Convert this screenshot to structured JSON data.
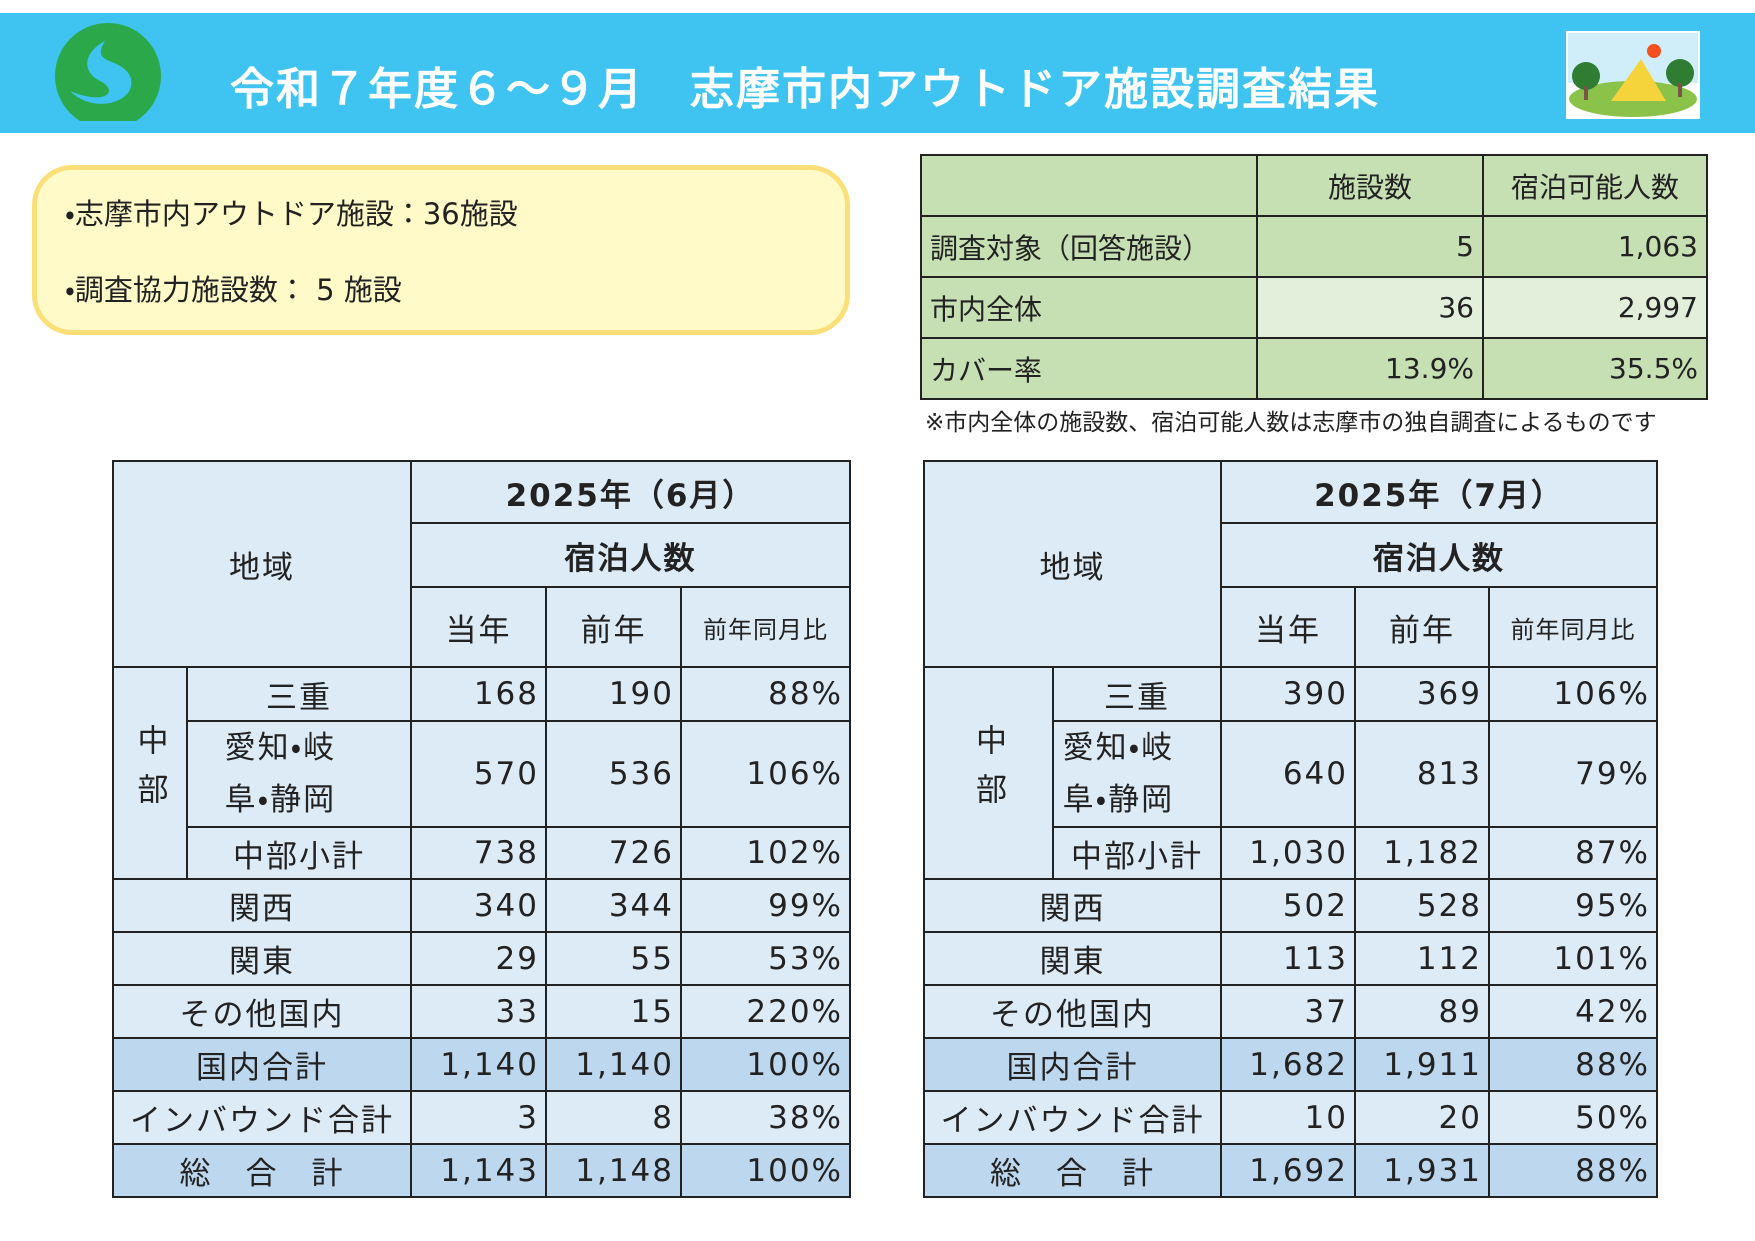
{
  "header": {
    "title": "令和７年度６～９月　志摩市内アウトドア施設調査結果"
  },
  "summary": {
    "items": [
      "・志摩市内アウトドア施設：36施設",
      "・調査協力施設数： 5 施設"
    ]
  },
  "coverage_table": {
    "columns": [
      "施設数",
      "宿泊可能人数"
    ],
    "rows": [
      {
        "label": "調査対象（回答施設）",
        "values": [
          "5",
          "1,063"
        ]
      },
      {
        "label": "市内全体",
        "values": [
          "36",
          "2,997"
        ]
      },
      {
        "label": "カバー率",
        "values": [
          "13.9%",
          "35.5%"
        ]
      }
    ],
    "note": "※市内全体の施設数、宿泊可能人数は志摩市の独自調査によるものです"
  },
  "tables": [
    {
      "title": "2025年（6月）",
      "region_header": "地域",
      "group_header": "宿泊人数",
      "columns": [
        "当年",
        "前年",
        "前年同月比"
      ],
      "chubu": {
        "label": "中部",
        "rows": [
          {
            "label": "三重",
            "values": [
              "168",
              "190",
              "88%"
            ]
          },
          {
            "label": "愛知・岐阜・静岡",
            "values": [
              "570",
              "536",
              "106%"
            ]
          },
          {
            "label": "中部小計",
            "values": [
              "738",
              "726",
              "102%"
            ]
          }
        ]
      },
      "rows": [
        {
          "label": "関西",
          "values": [
            "340",
            "344",
            "99%"
          ]
        },
        {
          "label": "関東",
          "values": [
            "29",
            "55",
            "53%"
          ]
        },
        {
          "label": "その他国内",
          "values": [
            "33",
            "15",
            "220%"
          ]
        },
        {
          "label": "国内合計",
          "values": [
            "1,140",
            "1,140",
            "100%"
          ]
        },
        {
          "label": "インバウンド合計",
          "values": [
            "3",
            "8",
            "38%"
          ]
        },
        {
          "label": "総　合　計",
          "values": [
            "1,143",
            "1,148",
            "100%"
          ]
        }
      ]
    },
    {
      "title": "2025年（7月）",
      "region_header": "地域",
      "group_header": "宿泊人数",
      "columns": [
        "当年",
        "前年",
        "前年同月比"
      ],
      "chubu": {
        "label": "中部",
        "rows": [
          {
            "label": "三重",
            "values": [
              "390",
              "369",
              "106%"
            ]
          },
          {
            "label": "愛知・岐阜・静岡",
            "values": [
              "640",
              "813",
              "79%"
            ]
          },
          {
            "label": "中部小計",
            "values": [
              "1,030",
              "1,182",
              "87%"
            ]
          }
        ]
      },
      "rows": [
        {
          "label": "関西",
          "values": [
            "502",
            "528",
            "95%"
          ]
        },
        {
          "label": "関東",
          "values": [
            "113",
            "112",
            "101%"
          ]
        },
        {
          "label": "その他国内",
          "values": [
            "37",
            "89",
            "42%"
          ]
        },
        {
          "label": "国内合計",
          "values": [
            "1,682",
            "1,911",
            "88%"
          ]
        },
        {
          "label": "インバウンド合計",
          "values": [
            "10",
            "20",
            "50%"
          ]
        },
        {
          "label": "総　合　計",
          "values": [
            "1,692",
            "1,931",
            "88%"
          ]
        }
      ]
    }
  ]
}
